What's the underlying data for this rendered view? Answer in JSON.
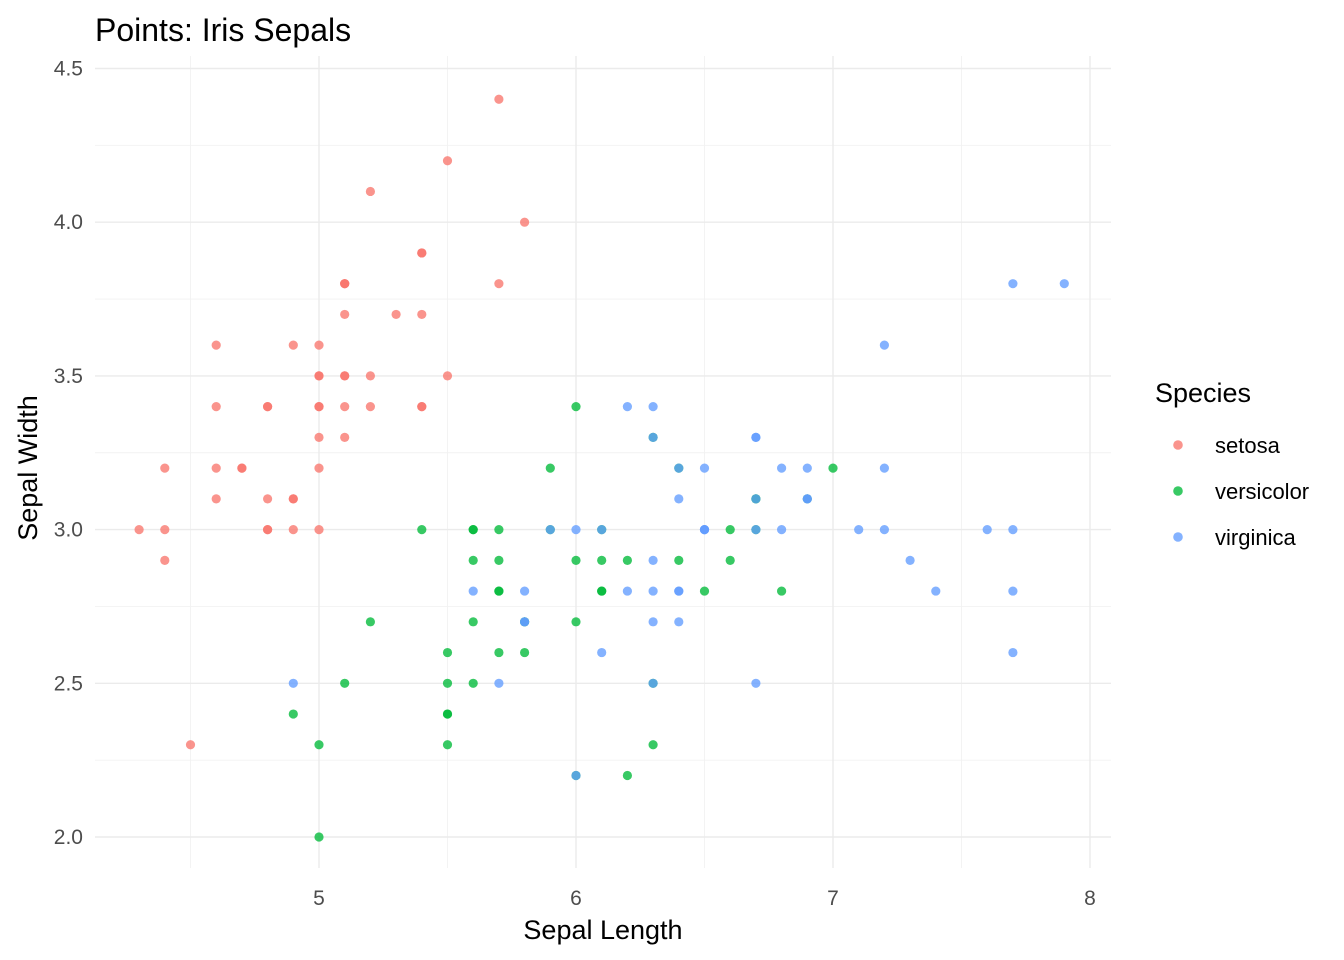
{
  "chart_data": {
    "type": "scatter",
    "title": "Points: Iris Sepals",
    "xlabel": "Sepal Length",
    "ylabel": "Sepal Width",
    "xlim": [
      4.2,
      8.08
    ],
    "ylim": [
      1.9,
      4.52
    ],
    "x_ticks": [
      5,
      6,
      7,
      8
    ],
    "x_tick_labels": [
      "5",
      "6",
      "7",
      "8"
    ],
    "x_minor_ticks": [
      4.5,
      5.5,
      6.5,
      7.5
    ],
    "y_ticks": [
      2.0,
      2.5,
      3.0,
      3.5,
      4.0,
      4.5
    ],
    "y_tick_labels": [
      "2.0",
      "2.5",
      "3.0",
      "3.5",
      "4.0",
      "4.5"
    ],
    "y_minor_ticks": [
      2.25,
      2.75,
      3.25,
      3.75,
      4.25
    ],
    "grid": true,
    "legend": {
      "title": "Species",
      "position": "right"
    },
    "series": [
      {
        "name": "setosa",
        "color": "#F8766D",
        "points": [
          [
            5.1,
            3.5
          ],
          [
            4.9,
            3.0
          ],
          [
            4.7,
            3.2
          ],
          [
            4.6,
            3.1
          ],
          [
            5.0,
            3.6
          ],
          [
            5.4,
            3.9
          ],
          [
            4.6,
            3.4
          ],
          [
            5.0,
            3.4
          ],
          [
            4.4,
            2.9
          ],
          [
            4.9,
            3.1
          ],
          [
            5.4,
            3.7
          ],
          [
            4.8,
            3.4
          ],
          [
            4.8,
            3.0
          ],
          [
            4.3,
            3.0
          ],
          [
            5.8,
            4.0
          ],
          [
            5.7,
            4.4
          ],
          [
            5.4,
            3.9
          ],
          [
            5.1,
            3.5
          ],
          [
            5.7,
            3.8
          ],
          [
            5.1,
            3.8
          ],
          [
            5.4,
            3.4
          ],
          [
            5.1,
            3.7
          ],
          [
            4.6,
            3.6
          ],
          [
            5.1,
            3.3
          ],
          [
            4.8,
            3.4
          ],
          [
            5.0,
            3.0
          ],
          [
            5.0,
            3.4
          ],
          [
            5.2,
            3.5
          ],
          [
            5.2,
            3.4
          ],
          [
            4.7,
            3.2
          ],
          [
            4.8,
            3.1
          ],
          [
            5.4,
            3.4
          ],
          [
            5.2,
            4.1
          ],
          [
            5.5,
            4.2
          ],
          [
            4.9,
            3.1
          ],
          [
            5.0,
            3.2
          ],
          [
            5.5,
            3.5
          ],
          [
            4.9,
            3.6
          ],
          [
            4.4,
            3.0
          ],
          [
            5.1,
            3.4
          ],
          [
            5.0,
            3.5
          ],
          [
            4.5,
            2.3
          ],
          [
            4.4,
            3.2
          ],
          [
            5.0,
            3.5
          ],
          [
            5.1,
            3.8
          ],
          [
            4.8,
            3.0
          ],
          [
            5.1,
            3.8
          ],
          [
            4.6,
            3.2
          ],
          [
            5.3,
            3.7
          ],
          [
            5.0,
            3.3
          ]
        ]
      },
      {
        "name": "versicolor",
        "color": "#00BA38",
        "points": [
          [
            7.0,
            3.2
          ],
          [
            6.4,
            3.2
          ],
          [
            6.9,
            3.1
          ],
          [
            5.5,
            2.3
          ],
          [
            6.5,
            2.8
          ],
          [
            5.7,
            2.8
          ],
          [
            6.3,
            3.3
          ],
          [
            4.9,
            2.4
          ],
          [
            6.6,
            2.9
          ],
          [
            5.2,
            2.7
          ],
          [
            5.0,
            2.0
          ],
          [
            5.9,
            3.0
          ],
          [
            6.0,
            2.2
          ],
          [
            6.1,
            2.9
          ],
          [
            5.6,
            2.9
          ],
          [
            6.7,
            3.1
          ],
          [
            5.6,
            3.0
          ],
          [
            5.8,
            2.7
          ],
          [
            6.2,
            2.2
          ],
          [
            5.6,
            2.5
          ],
          [
            5.9,
            3.2
          ],
          [
            6.1,
            2.8
          ],
          [
            6.3,
            2.5
          ],
          [
            6.1,
            2.8
          ],
          [
            6.4,
            2.9
          ],
          [
            6.6,
            3.0
          ],
          [
            6.8,
            2.8
          ],
          [
            6.7,
            3.0
          ],
          [
            6.0,
            2.9
          ],
          [
            5.7,
            2.6
          ],
          [
            5.5,
            2.4
          ],
          [
            5.5,
            2.4
          ],
          [
            5.8,
            2.7
          ],
          [
            6.0,
            2.7
          ],
          [
            5.4,
            3.0
          ],
          [
            6.0,
            3.4
          ],
          [
            6.7,
            3.1
          ],
          [
            6.3,
            2.3
          ],
          [
            5.6,
            3.0
          ],
          [
            5.5,
            2.5
          ],
          [
            5.5,
            2.6
          ],
          [
            6.1,
            3.0
          ],
          [
            5.8,
            2.6
          ],
          [
            5.0,
            2.3
          ],
          [
            5.6,
            2.7
          ],
          [
            5.7,
            3.0
          ],
          [
            5.7,
            2.9
          ],
          [
            6.2,
            2.9
          ],
          [
            5.1,
            2.5
          ],
          [
            5.7,
            2.8
          ]
        ]
      },
      {
        "name": "virginica",
        "color": "#619CFF",
        "points": [
          [
            6.3,
            3.3
          ],
          [
            5.8,
            2.7
          ],
          [
            7.1,
            3.0
          ],
          [
            6.3,
            2.9
          ],
          [
            6.5,
            3.0
          ],
          [
            7.6,
            3.0
          ],
          [
            4.9,
            2.5
          ],
          [
            7.3,
            2.9
          ],
          [
            6.7,
            2.5
          ],
          [
            7.2,
            3.6
          ],
          [
            6.5,
            3.2
          ],
          [
            6.4,
            2.7
          ],
          [
            6.8,
            3.0
          ],
          [
            5.7,
            2.5
          ],
          [
            5.8,
            2.8
          ],
          [
            6.4,
            3.2
          ],
          [
            6.5,
            3.0
          ],
          [
            7.7,
            3.8
          ],
          [
            7.7,
            2.6
          ],
          [
            6.0,
            2.2
          ],
          [
            6.9,
            3.2
          ],
          [
            5.6,
            2.8
          ],
          [
            7.7,
            2.8
          ],
          [
            6.3,
            2.7
          ],
          [
            6.7,
            3.3
          ],
          [
            7.2,
            3.2
          ],
          [
            6.2,
            2.8
          ],
          [
            6.1,
            3.0
          ],
          [
            6.4,
            2.8
          ],
          [
            7.2,
            3.0
          ],
          [
            7.4,
            2.8
          ],
          [
            7.9,
            3.8
          ],
          [
            6.4,
            2.8
          ],
          [
            6.3,
            2.8
          ],
          [
            6.1,
            2.6
          ],
          [
            7.7,
            3.0
          ],
          [
            6.3,
            3.4
          ],
          [
            6.4,
            3.1
          ],
          [
            6.0,
            3.0
          ],
          [
            6.9,
            3.1
          ],
          [
            6.7,
            3.1
          ],
          [
            6.9,
            3.1
          ],
          [
            5.8,
            2.7
          ],
          [
            6.8,
            3.2
          ],
          [
            6.7,
            3.3
          ],
          [
            6.7,
            3.0
          ],
          [
            6.3,
            2.5
          ],
          [
            6.5,
            3.0
          ],
          [
            6.2,
            3.4
          ],
          [
            5.9,
            3.0
          ]
        ]
      }
    ]
  }
}
